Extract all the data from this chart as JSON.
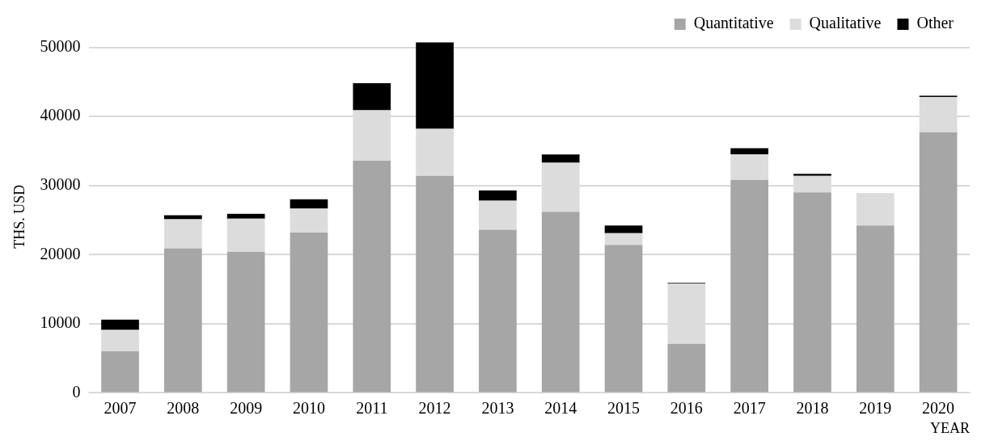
{
  "chart_data": {
    "type": "bar",
    "stacked": true,
    "xlabel": "YEAR",
    "ylabel": "THS. USD",
    "categories": [
      "2007",
      "2008",
      "2009",
      "2010",
      "2011",
      "2012",
      "2013",
      "2014",
      "2015",
      "2016",
      "2017",
      "2018",
      "2019",
      "2020"
    ],
    "series": [
      {
        "name": "Quantitative",
        "color": "#a6a6a6",
        "values": [
          6000,
          20900,
          20400,
          23200,
          33600,
          31400,
          23600,
          26200,
          21400,
          7100,
          30800,
          29000,
          24200,
          37700
        ]
      },
      {
        "name": "Qualitative",
        "color": "#dcdcdc",
        "values": [
          3100,
          4200,
          4800,
          3500,
          7300,
          6800,
          4200,
          7100,
          1700,
          8700,
          3700,
          2400,
          4700,
          5100
        ]
      },
      {
        "name": "Other",
        "color": "#000000",
        "values": [
          1500,
          600,
          700,
          1300,
          3900,
          12500,
          1500,
          1200,
          1100,
          100,
          900,
          300,
          0,
          200
        ]
      }
    ],
    "ylim": [
      0,
      51000
    ],
    "yticks": [
      0,
      10000,
      20000,
      30000,
      40000,
      50000
    ],
    "grid": "y",
    "legend": "top right"
  }
}
